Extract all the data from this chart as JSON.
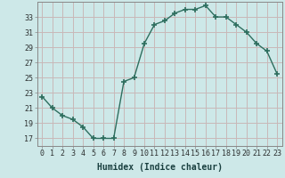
{
  "x": [
    0,
    1,
    2,
    3,
    4,
    5,
    6,
    7,
    8,
    9,
    10,
    11,
    12,
    13,
    14,
    15,
    16,
    17,
    18,
    19,
    20,
    21,
    22,
    23
  ],
  "y": [
    22.5,
    21.0,
    20.0,
    19.5,
    18.5,
    17.0,
    17.0,
    17.0,
    24.5,
    25.0,
    29.5,
    32.0,
    32.5,
    33.5,
    34.0,
    34.0,
    34.5,
    33.0,
    33.0,
    32.0,
    31.0,
    29.5,
    28.5,
    25.5
  ],
  "line_color": "#2d6e5e",
  "marker": "+",
  "marker_size": 4,
  "linewidth": 1.0,
  "bg_color": "#cde8e8",
  "grid_color": "#c8b8b8",
  "xlabel": "Humidex (Indice chaleur)",
  "ylabel_ticks": [
    17,
    19,
    21,
    23,
    25,
    27,
    29,
    31,
    33
  ],
  "xlim": [
    -0.5,
    23.5
  ],
  "ylim": [
    16,
    35
  ],
  "xtick_labels": [
    "0",
    "1",
    "2",
    "3",
    "4",
    "5",
    "6",
    "7",
    "8",
    "9",
    "10",
    "11",
    "12",
    "13",
    "14",
    "15",
    "16",
    "17",
    "18",
    "19",
    "20",
    "21",
    "22",
    "23"
  ],
  "label_fontsize": 7,
  "tick_fontsize": 6
}
